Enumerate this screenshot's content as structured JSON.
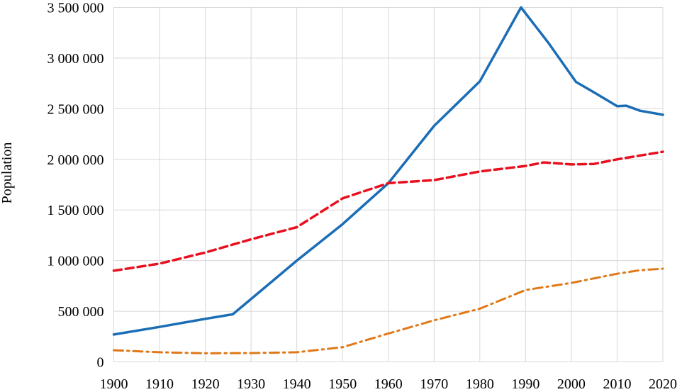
{
  "colors": {
    "background": "#ffffff",
    "grid": "#d8d8d8",
    "text": "#000000",
    "series_blue": "#1b6db6",
    "series_red": "#e8101e",
    "series_orange": "#e07818"
  },
  "chart_data": {
    "type": "line",
    "title": "",
    "xlabel": "",
    "ylabel": "Population",
    "xlim": [
      1900,
      2020
    ],
    "ylim": [
      0,
      3500000
    ],
    "grid": true,
    "legend_position": "none",
    "x_ticks": [
      1900,
      1910,
      1920,
      1930,
      1940,
      1950,
      1960,
      1970,
      1980,
      1990,
      2000,
      2010,
      2020
    ],
    "x_tick_labels": [
      "1900",
      "1910",
      "1920",
      "1930",
      "1940",
      "1950",
      "1960",
      "1970",
      "1980",
      "1990",
      "2000",
      "2010",
      "2020"
    ],
    "y_ticks": [
      0,
      500000,
      1000000,
      1500000,
      2000000,
      2500000,
      3000000,
      3500000
    ],
    "y_tick_labels": [
      "0",
      "500 000",
      "1 000 000",
      "1 500 000",
      "2 000 000",
      "2 500 000",
      "3 000 000",
      "3 500 000"
    ],
    "series": [
      {
        "name": "solid-blue",
        "color": "#1b6db6",
        "style": "solid",
        "points": [
          [
            1900,
            270000
          ],
          [
            1910,
            345000
          ],
          [
            1920,
            425000
          ],
          [
            1926,
            470000
          ],
          [
            1930,
            620000
          ],
          [
            1940,
            1000000
          ],
          [
            1950,
            1360000
          ],
          [
            1960,
            1765000
          ],
          [
            1970,
            2330000
          ],
          [
            1980,
            2770000
          ],
          [
            1989,
            3500000
          ],
          [
            1995,
            3150000
          ],
          [
            2001,
            2765000
          ],
          [
            2005,
            2660000
          ],
          [
            2010,
            2525000
          ],
          [
            2012,
            2530000
          ],
          [
            2015,
            2480000
          ],
          [
            2020,
            2440000
          ]
        ]
      },
      {
        "name": "dashed-red",
        "color": "#e8101e",
        "style": "dashed",
        "points": [
          [
            1900,
            900000
          ],
          [
            1910,
            970000
          ],
          [
            1920,
            1080000
          ],
          [
            1930,
            1210000
          ],
          [
            1940,
            1330000
          ],
          [
            1950,
            1615000
          ],
          [
            1960,
            1765000
          ],
          [
            1970,
            1795000
          ],
          [
            1980,
            1880000
          ],
          [
            1990,
            1935000
          ],
          [
            1994,
            1970000
          ],
          [
            2000,
            1950000
          ],
          [
            2005,
            1955000
          ],
          [
            2010,
            2000000
          ],
          [
            2020,
            2075000
          ]
        ]
      },
      {
        "name": "dashdot-orange",
        "color": "#e07818",
        "style": "dashdot",
        "points": [
          [
            1900,
            115000
          ],
          [
            1910,
            95000
          ],
          [
            1920,
            85000
          ],
          [
            1930,
            87000
          ],
          [
            1940,
            95000
          ],
          [
            1950,
            145000
          ],
          [
            1960,
            280000
          ],
          [
            1970,
            410000
          ],
          [
            1980,
            525000
          ],
          [
            1990,
            710000
          ],
          [
            2000,
            780000
          ],
          [
            2010,
            870000
          ],
          [
            2015,
            905000
          ],
          [
            2020,
            920000
          ]
        ]
      }
    ]
  }
}
